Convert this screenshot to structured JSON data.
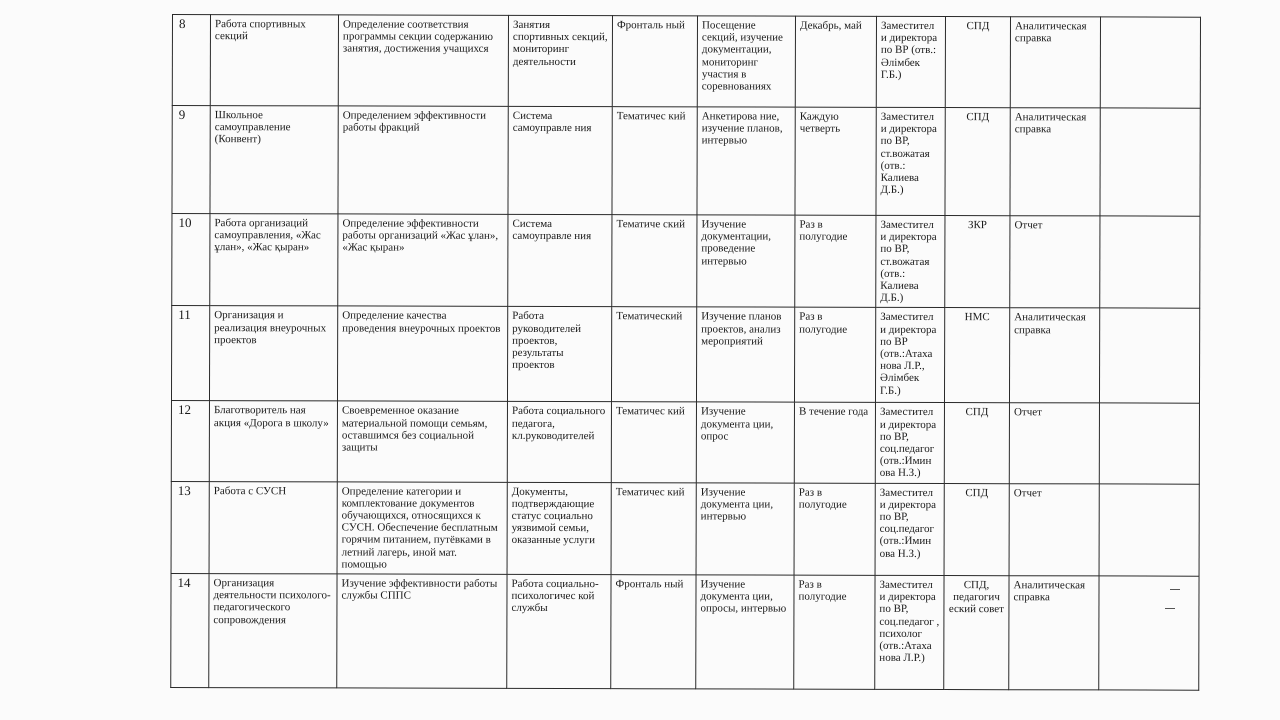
{
  "rows": [
    {
      "num": "8",
      "name": "Работа спортивных секций",
      "goal": "Определение соответствия программы секции содержанию занятия, достижения учащихся",
      "object": "Занятия спортивных секций, мониторинг деятельности",
      "type": "Фронталь ный",
      "method": "Посещение секций, изучение документации, мониторинг участия в соревнованиях",
      "period": "Декабрь, май",
      "responsible": "Заместител и директора по ВР (отв.: Әлімбек Г.Б.)",
      "review": "СПД",
      "result": "Аналитическая справка",
      "extra": ""
    },
    {
      "num": "9",
      "name": "Школьное самоуправление (Конвент)",
      "goal": "Определением эффективности работы фракций",
      "object": "Система самоуправле ния",
      "type": "Тематичес кий",
      "method": "Анкетирова ние, изучение планов, интервью",
      "period": "Каждую четверть",
      "responsible": "Заместител и директора по ВР, ст.вожатая (отв.: Калиева Д.Б.)",
      "review": "СПД",
      "result": "Аналитическая справка",
      "extra": ""
    },
    {
      "num": "10",
      "name": "Работа организаций самоуправления, «Жас ұлан», «Жас қыран»",
      "goal": "Определение эффективности работы организаций «Жас ұлан», «Жас қыран»",
      "object": "Система самоуправле ния",
      "type": "Тематиче ский",
      "method": "Изучение документации, проведение интервью",
      "period": "Раз в полугодие",
      "responsible": "Заместител и директора по ВР, ст.вожатая (отв.: Калиева Д.Б.)",
      "review": "ЗКР",
      "result": "Отчет",
      "extra": ""
    },
    {
      "num": "11",
      "name": "Организация и реализация внеурочных проектов",
      "goal": "Определение качества проведения внеурочных проектов",
      "object": "Работа руководителей проектов, результаты проектов",
      "type": "Тематический",
      "method": "Изучение планов проектов, анализ мероприятий",
      "period": "Раз в полугодие",
      "responsible": "Заместител и директора по ВР (отв.:Атаха нова Л.Р., Әлімбек Г.Б.)",
      "review": "НМС",
      "result": "Аналитическая справка",
      "extra": ""
    },
    {
      "num": "12",
      "name": "Благотворитель ная акция «Дорога в школу»",
      "goal": "Своевременное оказание материальной помощи семьям, оставшимся без социальной защиты",
      "object": "Работа социального педагога, кл.руководителей",
      "type": "Тематичес кий",
      "method": "Изучение документа ции, опрос",
      "period": "В течение года",
      "responsible": "Заместител и директора по ВР, соц.педагог (отв.:Имин ова Н.З.)",
      "review": "СПД",
      "result": "Отчет",
      "extra": ""
    },
    {
      "num": "13",
      "name": "Работа с СУСН",
      "goal": "Определение категории и комплектование документов обучающихся, относящихся к СУСН. Обеспечение бесплатным горячим питанием, путёвками в летний лагерь, иной мат. помощью",
      "object": "Документы, подтверждающие статус социально уязвимой семьи, оказанные услуги",
      "type": "Тематичес кий",
      "method": "Изучение документа ции, интервью",
      "period": "Раз в полугодие",
      "responsible": "Заместител и директора по ВР, соц.педагог (отв.:Имин ова Н.З.)",
      "review": "СПД",
      "result": "Отчет",
      "extra": ""
    },
    {
      "num": "14",
      "name": "Организация деятельности психолого-педагогического сопровождения",
      "goal": "Изучение эффективности работы службы СППС",
      "object": "Работа социально-психологичес кой службы",
      "type": "Фронталь ный",
      "method": "Изучение документа ции, опросы, интервью",
      "period": "Раз в полугодие",
      "responsible": "Заместител и директора по ВР, соц.педагог , психолог (отв.:Атаха нова Л.Р.)",
      "review": "СПД, педагогич еский совет",
      "result": "Аналитическая справка",
      "extra": ""
    }
  ]
}
